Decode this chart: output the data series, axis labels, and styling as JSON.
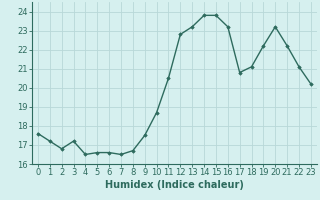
{
  "x": [
    0,
    1,
    2,
    3,
    4,
    5,
    6,
    7,
    8,
    9,
    10,
    11,
    12,
    13,
    14,
    15,
    16,
    17,
    18,
    19,
    20,
    21,
    22,
    23
  ],
  "y": [
    17.6,
    17.2,
    16.8,
    17.2,
    16.5,
    16.6,
    16.6,
    16.5,
    16.7,
    17.5,
    18.7,
    20.5,
    22.8,
    23.2,
    23.8,
    23.8,
    23.2,
    20.8,
    21.1,
    22.2,
    23.2,
    22.2,
    21.1,
    20.2
  ],
  "line_color": "#2e6b5e",
  "marker": "D",
  "marker_size": 1.8,
  "bg_color": "#d6f0ef",
  "grid_color": "#b8d8d8",
  "xlabel": "Humidex (Indice chaleur)",
  "xlabel_fontsize": 7,
  "tick_fontsize": 6,
  "xlim": [
    -0.5,
    23.5
  ],
  "ylim": [
    16,
    24.5
  ],
  "yticks": [
    16,
    17,
    18,
    19,
    20,
    21,
    22,
    23,
    24
  ],
  "xticks": [
    0,
    1,
    2,
    3,
    4,
    5,
    6,
    7,
    8,
    9,
    10,
    11,
    12,
    13,
    14,
    15,
    16,
    17,
    18,
    19,
    20,
    21,
    22,
    23
  ],
  "linewidth": 1.0,
  "spine_color": "#2e6b5e"
}
